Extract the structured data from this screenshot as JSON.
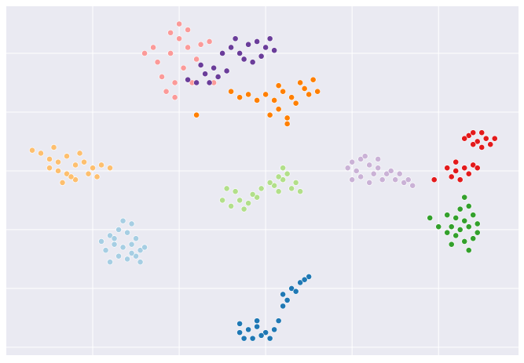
{
  "chart_data": {
    "type": "scatter",
    "xlim": [
      -60,
      58.5
    ],
    "ylim": [
      -62.7,
      56
    ],
    "xticks": [
      -40,
      -20,
      0,
      20,
      40
    ],
    "yticks": [
      40,
      20,
      0,
      -20,
      -40,
      -60
    ],
    "grid": true,
    "series": [
      {
        "color": "#fb9a99",
        "x": [
          -25,
          -22,
          -20,
          -18,
          -24,
          -21,
          -19,
          -16,
          -15,
          -13,
          -26,
          -28,
          -23,
          -21,
          -17,
          -14,
          -12,
          -20,
          -22,
          -18
        ],
        "values": [
          37,
          40,
          45,
          48,
          32,
          30,
          35,
          38,
          43,
          44,
          42,
          40,
          27,
          25,
          30,
          33,
          30,
          50,
          47,
          42
        ]
      },
      {
        "color": "#6a3d9a",
        "x": [
          -8,
          -6,
          -4,
          -2,
          0,
          2,
          -5,
          -3,
          -7,
          1,
          -10,
          -12,
          -14,
          -11,
          -16,
          -9,
          -13,
          -18,
          -15,
          -1
        ],
        "values": [
          42,
          40,
          43,
          44,
          42,
          41,
          38,
          37,
          45,
          45,
          40,
          35,
          33,
          32,
          30,
          34,
          30,
          31,
          36,
          39
        ]
      },
      {
        "color": "#ff7f00",
        "x": [
          0,
          2,
          4,
          6,
          8,
          9,
          7,
          3,
          1,
          5,
          10,
          12,
          11,
          -2,
          -4,
          -8,
          5,
          -16,
          -6,
          3
        ],
        "values": [
          26,
          24,
          27,
          25,
          30,
          28,
          23,
          21,
          19,
          18,
          26,
          27,
          31,
          24,
          26,
          27,
          16,
          19,
          25,
          29
        ]
      },
      {
        "color": "#fdbf6f",
        "x": [
          -52,
          -50,
          -48,
          -46,
          -44,
          -42,
          -40,
          -38,
          -48,
          -46,
          -44,
          -47,
          -50,
          -54,
          -43,
          -41,
          -39,
          -36,
          -49,
          -45
        ],
        "values": [
          6,
          4,
          3,
          5,
          2,
          3,
          1,
          2,
          0,
          -1,
          -3,
          -4,
          1,
          7,
          6,
          -1,
          -2,
          1,
          8,
          -2
        ]
      },
      {
        "color": "#b2df8a",
        "x": [
          -10,
          -8,
          -6,
          -4,
          -2,
          -7,
          -9,
          -5,
          2,
          4,
          6,
          8,
          3,
          5,
          3,
          4,
          1,
          7,
          -3,
          -1
        ],
        "values": [
          -10,
          -12,
          -10,
          -11,
          -9,
          -7,
          -6,
          -13,
          -5,
          -3,
          -6,
          -7,
          -7,
          -1,
          -2,
          1,
          -4,
          -4,
          -8,
          -6
        ]
      },
      {
        "color": "#cab2d6",
        "x": [
          20,
          22,
          24,
          26,
          28,
          30,
          22,
          24,
          27,
          21,
          19,
          25,
          32,
          34,
          29,
          23,
          26,
          20,
          31,
          33
        ],
        "values": [
          3,
          4,
          2,
          1,
          -1,
          -3,
          -2,
          -4,
          -3,
          0,
          1,
          -1,
          -4,
          -5,
          0,
          5,
          4,
          -3,
          -1,
          -3
        ]
      },
      {
        "color": "#e31a1c",
        "x": [
          47,
          49,
          51,
          50,
          48,
          46,
          52,
          53,
          48,
          50,
          42,
          44,
          46,
          48,
          43,
          45,
          47,
          44,
          49,
          39
        ],
        "values": [
          12,
          10,
          11,
          8,
          9,
          11,
          9,
          11,
          13,
          13,
          1,
          0,
          1,
          2,
          -2,
          -3,
          -1,
          3,
          1,
          -3
        ]
      },
      {
        "color": "#33a02c",
        "x": [
          42,
          44,
          46,
          48,
          43,
          45,
          47,
          49,
          44,
          46,
          48,
          42,
          45,
          47,
          43,
          49,
          46,
          40,
          38,
          47
        ],
        "values": [
          -15,
          -16,
          -17,
          -15,
          -19,
          -20,
          -19,
          -18,
          -22,
          -24,
          -23,
          -21,
          -13,
          -12,
          -25,
          -21,
          -9,
          -19,
          -16,
          -27
        ]
      },
      {
        "color": "#a6cee3",
        "x": [
          -36,
          -34,
          -32,
          -30,
          -35,
          -33,
          -31,
          -29,
          -37,
          -34,
          -32,
          -30,
          -28,
          -36,
          -33,
          -31,
          -38,
          -29,
          -35,
          -31
        ],
        "values": [
          -22,
          -20,
          -21,
          -23,
          -25,
          -26,
          -25,
          -27,
          -27,
          -29,
          -30,
          -29,
          -26,
          -31,
          -17,
          -18,
          -24,
          -31,
          -23,
          -28
        ]
      },
      {
        "color": "#1f78b4",
        "x": [
          -6,
          -4,
          -2,
          0,
          2,
          -5,
          -3,
          -1,
          1,
          -6,
          -2,
          3,
          4,
          6,
          8,
          10,
          5,
          7,
          9,
          4
        ],
        "values": [
          -55,
          -54,
          -53,
          -55,
          -54,
          -57,
          -57,
          -56,
          -57,
          -52,
          -51,
          -51,
          -42,
          -40,
          -38,
          -36,
          -44,
          -41,
          -37,
          -46
        ]
      }
    ]
  }
}
